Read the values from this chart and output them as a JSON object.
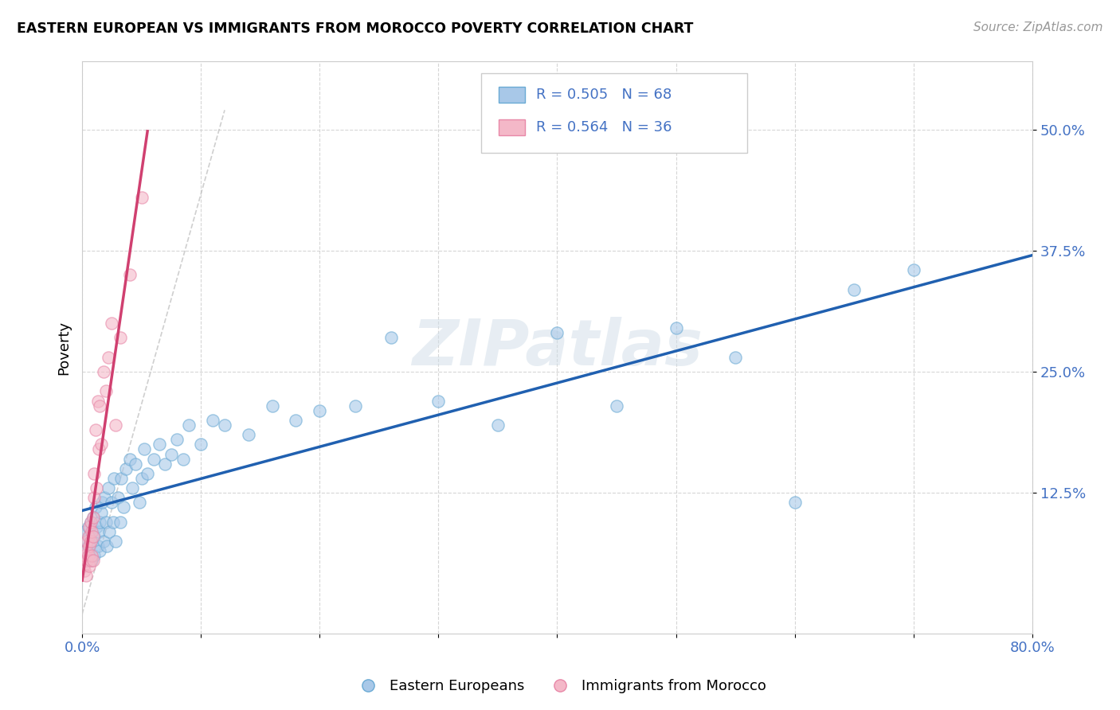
{
  "title": "EASTERN EUROPEAN VS IMMIGRANTS FROM MOROCCO POVERTY CORRELATION CHART",
  "source": "Source: ZipAtlas.com",
  "ylabel": "Poverty",
  "ytick_labels": [
    "12.5%",
    "25.0%",
    "37.5%",
    "50.0%"
  ],
  "ytick_values": [
    0.125,
    0.25,
    0.375,
    0.5
  ],
  "xlim": [
    0.0,
    0.8
  ],
  "ylim": [
    -0.02,
    0.57
  ],
  "legend_r1": "R = 0.505",
  "legend_n1": "N = 68",
  "legend_r2": "R = 0.564",
  "legend_n2": "N = 36",
  "blue_color": "#a8c8e8",
  "pink_color": "#f4b8c8",
  "blue_edge_color": "#6aaad4",
  "pink_edge_color": "#e888a8",
  "blue_line_color": "#2060b0",
  "pink_line_color": "#d04070",
  "legend_text_color": "#4472c4",
  "scatter_alpha": 0.6,
  "marker_size": 120,
  "watermark": "ZIPatlas",
  "blue_scatter_x": [
    0.002,
    0.003,
    0.004,
    0.005,
    0.005,
    0.006,
    0.006,
    0.007,
    0.008,
    0.008,
    0.009,
    0.01,
    0.01,
    0.011,
    0.012,
    0.013,
    0.014,
    0.015,
    0.015,
    0.016,
    0.017,
    0.018,
    0.019,
    0.02,
    0.021,
    0.022,
    0.023,
    0.025,
    0.026,
    0.027,
    0.028,
    0.03,
    0.032,
    0.033,
    0.035,
    0.037,
    0.04,
    0.042,
    0.045,
    0.048,
    0.05,
    0.052,
    0.055,
    0.06,
    0.065,
    0.07,
    0.075,
    0.08,
    0.085,
    0.09,
    0.1,
    0.11,
    0.12,
    0.14,
    0.16,
    0.18,
    0.2,
    0.23,
    0.26,
    0.3,
    0.35,
    0.4,
    0.45,
    0.5,
    0.55,
    0.6,
    0.65,
    0.7
  ],
  "blue_scatter_y": [
    0.085,
    0.065,
    0.075,
    0.07,
    0.09,
    0.08,
    0.06,
    0.095,
    0.075,
    0.055,
    0.1,
    0.08,
    0.06,
    0.11,
    0.09,
    0.07,
    0.085,
    0.095,
    0.065,
    0.105,
    0.115,
    0.075,
    0.12,
    0.095,
    0.07,
    0.13,
    0.085,
    0.115,
    0.095,
    0.14,
    0.075,
    0.12,
    0.095,
    0.14,
    0.11,
    0.15,
    0.16,
    0.13,
    0.155,
    0.115,
    0.14,
    0.17,
    0.145,
    0.16,
    0.175,
    0.155,
    0.165,
    0.18,
    0.16,
    0.195,
    0.175,
    0.2,
    0.195,
    0.185,
    0.215,
    0.2,
    0.21,
    0.215,
    0.285,
    0.22,
    0.195,
    0.29,
    0.215,
    0.295,
    0.265,
    0.115,
    0.335,
    0.355
  ],
  "pink_scatter_x": [
    0.001,
    0.002,
    0.002,
    0.003,
    0.003,
    0.004,
    0.004,
    0.005,
    0.005,
    0.006,
    0.006,
    0.006,
    0.007,
    0.007,
    0.007,
    0.008,
    0.008,
    0.009,
    0.009,
    0.009,
    0.01,
    0.01,
    0.011,
    0.012,
    0.013,
    0.014,
    0.015,
    0.016,
    0.018,
    0.02,
    0.022,
    0.025,
    0.028,
    0.032,
    0.04,
    0.05
  ],
  "pink_scatter_y": [
    0.05,
    0.045,
    0.06,
    0.04,
    0.065,
    0.055,
    0.075,
    0.06,
    0.08,
    0.05,
    0.07,
    0.09,
    0.055,
    0.075,
    0.095,
    0.06,
    0.085,
    0.055,
    0.08,
    0.1,
    0.12,
    0.145,
    0.19,
    0.13,
    0.22,
    0.17,
    0.215,
    0.175,
    0.25,
    0.23,
    0.265,
    0.3,
    0.195,
    0.285,
    0.35,
    0.43
  ]
}
